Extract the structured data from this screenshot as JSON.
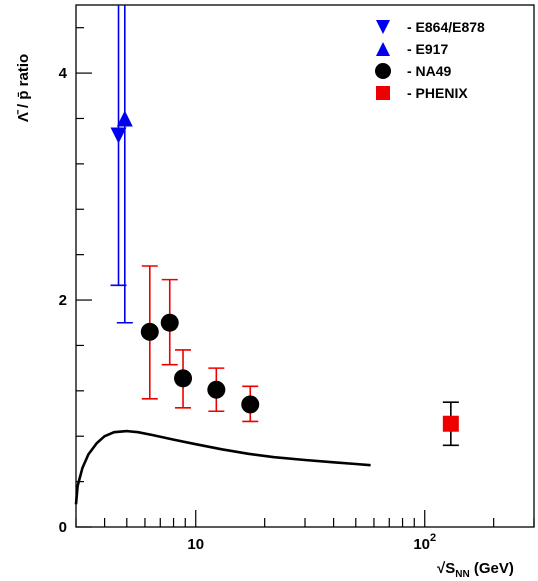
{
  "chart_data": {
    "type": "scatter",
    "title": "",
    "xlabel": "√S_NN (GeV)",
    "xlabel_parts": {
      "root": "√",
      "main": "S",
      "sub": "NN",
      "unit": " (GeV)"
    },
    "ylabel": "Λ̄ / p̄  ratio",
    "x_scale": "log",
    "xlim": [
      3,
      300
    ],
    "ylim": [
      0,
      4.6
    ],
    "x_ticks": [
      {
        "value": 10,
        "label": "10"
      },
      {
        "value": 100,
        "label": "10",
        "sup": "2"
      }
    ],
    "y_ticks": [
      {
        "value": 0,
        "label": "0"
      },
      {
        "value": 2,
        "label": "2"
      },
      {
        "value": 4,
        "label": "4"
      }
    ],
    "grid": false,
    "legend_position": "top-right",
    "series": [
      {
        "name": "- E864/E878",
        "marker": "triangle-down",
        "color": "#0000ee",
        "error_color": "#0000ee",
        "points": [
          {
            "x": 4.6,
            "y": 3.45,
            "err_low": 2.13,
            "err_high": 4.6
          }
        ]
      },
      {
        "name": "- E917",
        "marker": "triangle-up",
        "color": "#0000ee",
        "error_color": "#0000ee",
        "points": [
          {
            "x": 4.9,
            "y": 3.6,
            "err_low": 1.8,
            "err_high": 4.6
          }
        ]
      },
      {
        "name": "- NA49",
        "marker": "circle",
        "color": "#000000",
        "error_color": "#ee0000",
        "points": [
          {
            "x": 6.3,
            "y": 1.72,
            "err_low": 1.13,
            "err_high": 2.3
          },
          {
            "x": 7.7,
            "y": 1.8,
            "err_low": 1.43,
            "err_high": 2.18
          },
          {
            "x": 8.8,
            "y": 1.31,
            "err_low": 1.05,
            "err_high": 1.56
          },
          {
            "x": 12.3,
            "y": 1.21,
            "err_low": 1.02,
            "err_high": 1.4
          },
          {
            "x": 17.3,
            "y": 1.08,
            "err_low": 0.93,
            "err_high": 1.24
          }
        ]
      },
      {
        "name": "- PHENIX",
        "marker": "square",
        "color": "#ee0000",
        "error_color": "#000000",
        "points": [
          {
            "x": 130,
            "y": 0.91,
            "err_low": 0.72,
            "err_high": 1.1
          }
        ]
      }
    ],
    "model_curve": {
      "color": "#000000",
      "points": [
        [
          3.0,
          0.2
        ],
        [
          3.05,
          0.36
        ],
        [
          3.2,
          0.52
        ],
        [
          3.4,
          0.64
        ],
        [
          3.7,
          0.74
        ],
        [
          4.0,
          0.8
        ],
        [
          4.4,
          0.835
        ],
        [
          5.0,
          0.845
        ],
        [
          5.6,
          0.835
        ],
        [
          6.5,
          0.81
        ],
        [
          8.0,
          0.77
        ],
        [
          10,
          0.73
        ],
        [
          13,
          0.685
        ],
        [
          17,
          0.645
        ],
        [
          22,
          0.615
        ],
        [
          30,
          0.59
        ],
        [
          40,
          0.57
        ],
        [
          50,
          0.555
        ],
        [
          58,
          0.545
        ]
      ]
    }
  }
}
